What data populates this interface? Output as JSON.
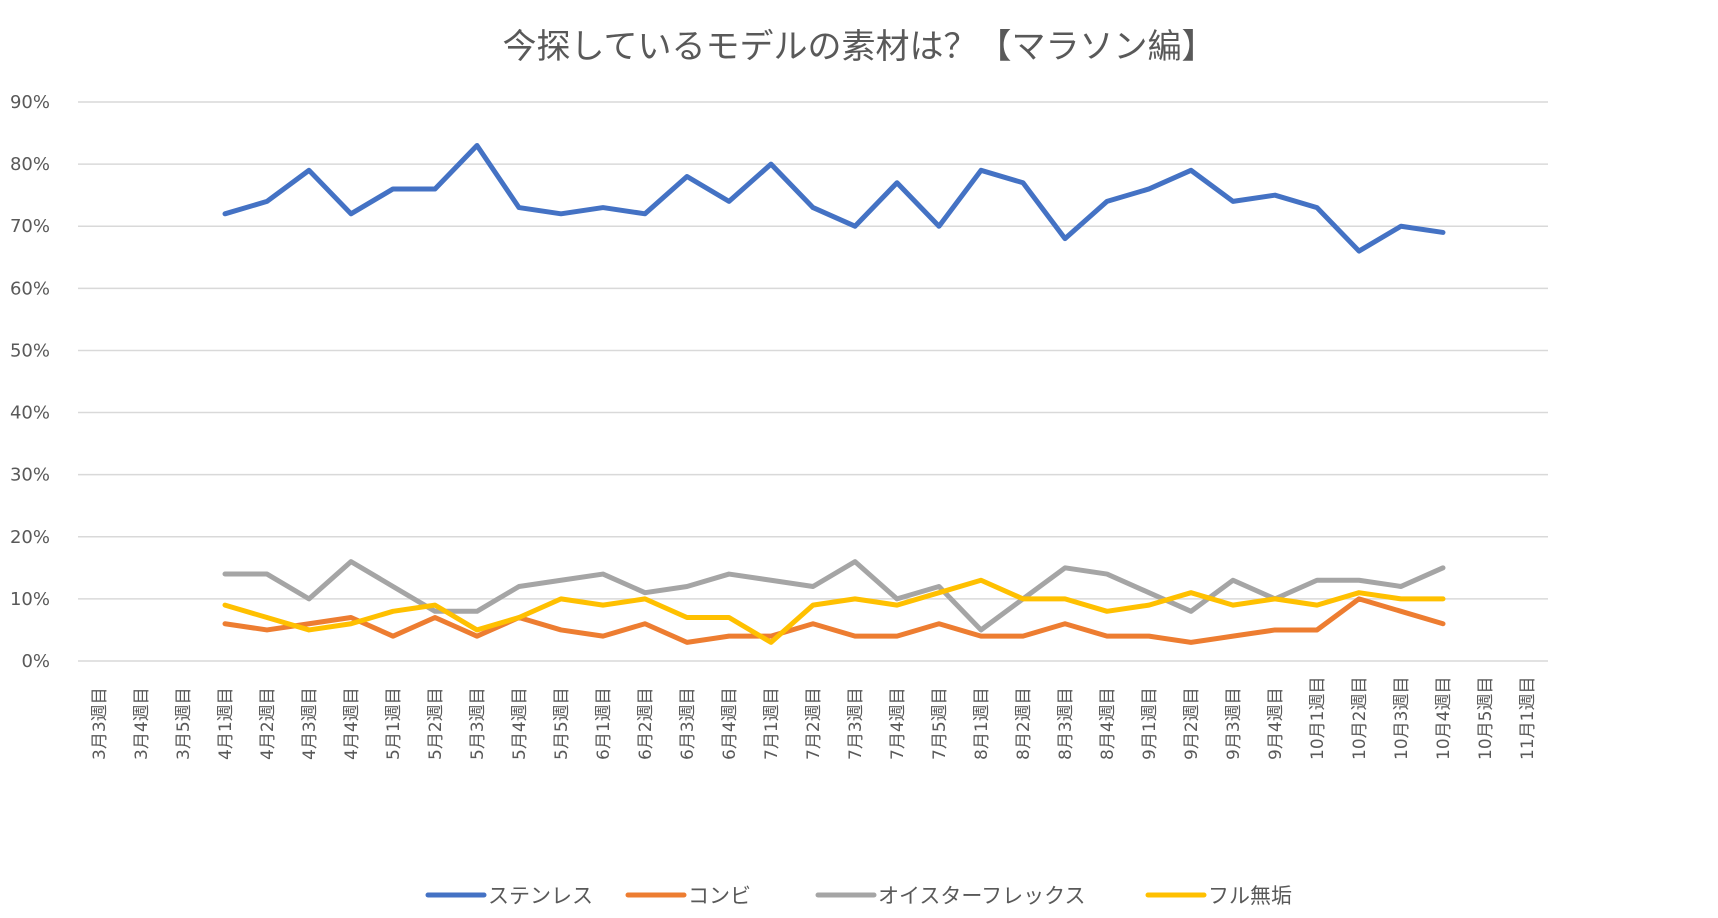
{
  "chart_data": {
    "type": "line",
    "title": "今探しているモデルの素材は？【マラソン編】",
    "xlabel": "",
    "ylabel": "",
    "ylim": [
      0,
      90
    ],
    "yticks": [
      "0%",
      "10%",
      "20%",
      "30%",
      "40%",
      "50%",
      "60%",
      "70%",
      "80%",
      "90%"
    ],
    "ytick_values": [
      0,
      10,
      20,
      30,
      40,
      50,
      60,
      70,
      80,
      90
    ],
    "grid": true,
    "legend_position": "bottom",
    "categories": [
      "3月3週目",
      "3月4週目",
      "3月5週目",
      "4月1週目",
      "4月2週目",
      "4月3週目",
      "4月4週目",
      "5月1週目",
      "5月2週目",
      "5月3週目",
      "5月4週目",
      "5月5週目",
      "6月1週目",
      "6月2週目",
      "6月3週目",
      "6月4週目",
      "7月1週目",
      "7月2週目",
      "7月3週目",
      "7月4週目",
      "7月5週目",
      "8月1週目",
      "8月2週目",
      "8月3週目",
      "8月4週目",
      "9月1週目",
      "9月2週目",
      "9月3週目",
      "9月4週目",
      "10月1週目",
      "10月2週目",
      "10月3週目",
      "10月4週目",
      "10月5週目",
      "11月1週目"
    ],
    "series": [
      {
        "name": "ステンレス",
        "color": "#4472C4",
        "values": [
          null,
          null,
          null,
          72,
          74,
          79,
          72,
          76,
          76,
          83,
          73,
          72,
          73,
          72,
          78,
          74,
          80,
          73,
          70,
          77,
          70,
          79,
          77,
          68,
          74,
          76,
          79,
          74,
          75,
          73,
          66,
          70,
          69,
          null,
          null
        ]
      },
      {
        "name": "コンビ",
        "color": "#ED7D31",
        "values": [
          null,
          null,
          null,
          6,
          5,
          6,
          7,
          4,
          7,
          4,
          7,
          5,
          4,
          6,
          3,
          4,
          4,
          6,
          4,
          4,
          6,
          4,
          4,
          6,
          4,
          4,
          3,
          4,
          5,
          5,
          10,
          8,
          6,
          null,
          null
        ]
      },
      {
        "name": "オイスターフレックス",
        "color": "#A5A5A5",
        "values": [
          null,
          null,
          null,
          14,
          14,
          10,
          16,
          12,
          8,
          8,
          12,
          13,
          14,
          11,
          12,
          14,
          13,
          12,
          16,
          10,
          12,
          5,
          10,
          15,
          14,
          11,
          8,
          13,
          10,
          13,
          13,
          12,
          15,
          null,
          null
        ]
      },
      {
        "name": "フル無垢",
        "color": "#FFC000",
        "values": [
          null,
          null,
          null,
          9,
          7,
          5,
          6,
          8,
          9,
          5,
          7,
          10,
          9,
          10,
          7,
          7,
          3,
          9,
          10,
          9,
          11,
          13,
          10,
          10,
          8,
          9,
          11,
          9,
          10,
          9,
          11,
          10,
          10,
          null,
          null
        ]
      }
    ]
  }
}
